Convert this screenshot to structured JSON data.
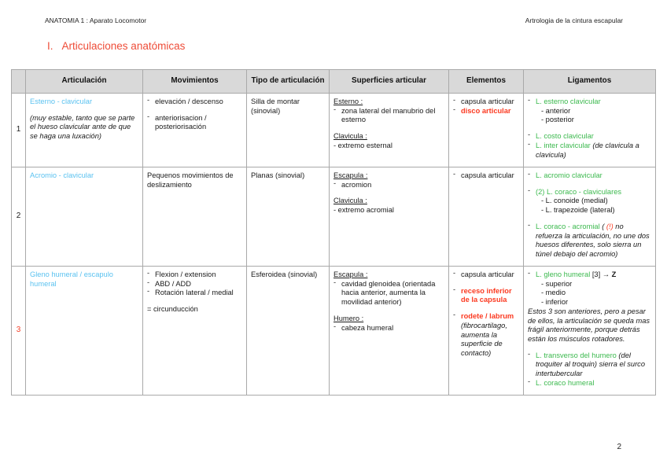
{
  "page": {
    "header_left": "ANATOMIA 1 : Aparato Locomotor",
    "header_right": "Artrologia de la cintura escapular",
    "title_num": "I.",
    "title_text": "Articulaciones anatómicas",
    "page_number": "2"
  },
  "colors": {
    "title_red": "#ee4c38",
    "highlight_red": "#fb3a21",
    "articulation_blue": "#5bc2f0",
    "ligament_green": "#3cb94e",
    "header_gray": "#d9d9d9",
    "border_gray": "#a9a9a9"
  },
  "table": {
    "headers": {
      "num": "",
      "articulacion": "Articulación",
      "movimientos": "Movimientos",
      "tipo": "Tipo de articulación",
      "superficies": "Superficies articular",
      "elementos": "Elementos",
      "ligamentos": "Ligamentos"
    },
    "r1": {
      "num": "1",
      "name": "Esterno - clavicular",
      "note": "(muy estable, tanto que se parte el hueso clavicular ante de que se haga una luxación)",
      "mov1": "elevación / descenso",
      "mov2": "anteriorisacion / posteriorisación",
      "tipo": "Silla de montar (sinovial)",
      "sup_h1": "Esterno :",
      "sup_b1": "zona lateral del manubrio del esterno",
      "sup_h2": "Clavicula :",
      "sup_l2": "- extremo esternal",
      "elem1": "capsula articular",
      "elem2": "disco articular",
      "lig1": "L. esterno clavicular",
      "lig1_sub1": "- anterior",
      "lig1_sub2": "- posterior",
      "lig2": "L. costo clavicular",
      "lig3_name": "L. inter clavicular ",
      "lig3_note": "(de clavicula a clavicula)"
    },
    "r2": {
      "num": "2",
      "name": "Acromio - clavicular",
      "mov": "Pequenos movimientos de deslizamiento",
      "tipo": "Planas (sinovial)",
      "sup_h1": "Escapula :",
      "sup_b1": "acromion",
      "sup_h2": "Clavicula :",
      "sup_l2": "- extremo acromial",
      "elem1": "capsula articular",
      "lig1": "L. acromio clavicular",
      "lig2": "(2) L. coraco - claviculares",
      "lig2_sub1": "- L. conoide (medial)",
      "lig2_sub2": "- L. trapezoide (lateral)",
      "lig3_name": "L. coraco - acromial ",
      "lig3_open": "( ",
      "lig3_warn": "(!)",
      "lig3_note": " no refuerza la articulación, no une dos huesos diferentes, solo sierra un túnel debajo del acromio)"
    },
    "r3": {
      "num": "3",
      "name": "Gleno humeral / escapulo humeral",
      "mov1": "Flexion / extension",
      "mov2": "ABD / ADD",
      "mov3": "Rotación lateral / medial",
      "mov4": "= circunducción",
      "tipo": "Esferoidea (sinovial)",
      "sup_h1": "Escapula :",
      "sup_b1": "cavidad glenoidea (orientada hacia anterior, aumenta la movilidad anterior)",
      "sup_h2": "Humero :",
      "sup_b2": "cabeza humeral",
      "elem1": "capsula articular",
      "elem2": "receso inferior de la capsula",
      "elem3": "rodete / labrum",
      "elem3_note": "(fibrocartilago, aumenta la superficie de contacto)",
      "lig1_name": "L. gleno humeral",
      "lig1_ref": " [3] ",
      "lig1_z": "→ Z",
      "lig1_sub1": "- superior",
      "lig1_sub2": "- medio",
      "lig1_sub3": "- inferior",
      "lig_para": "Estos 3 son anteriores, pero a pesar de ellos, la articulación se queda mas frágil anteriormente, porque detrás están los músculos rotadores.",
      "lig2_name": "L. transverso del humero ",
      "lig2_note": "(del troquiter al troquin) sierra el surco intertubercular",
      "lig3_name": "L. coraco humeral"
    }
  }
}
